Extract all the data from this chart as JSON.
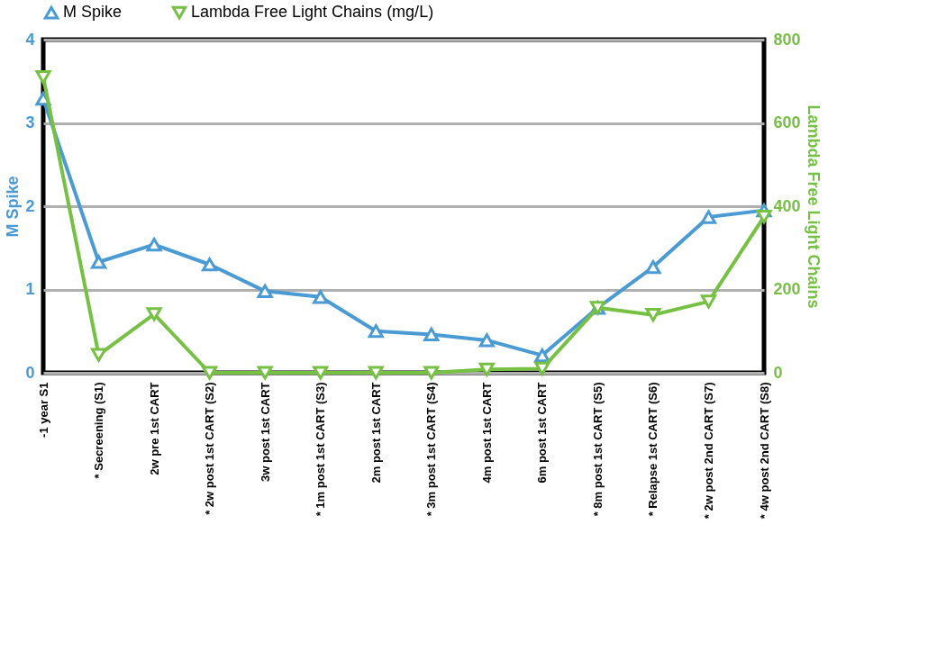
{
  "chart_data": {
    "type": "line",
    "categories": [
      "-1 year S1",
      "* Secreening (S1)",
      "2w pre 1st CART",
      "* 2w post 1st CART (S2)",
      "3w post 1st CART",
      "* 1m post 1st CART (S3)",
      "2m post 1st CART",
      "* 3m post 1st CART (S4)",
      "4m post 1st CART",
      "6m post 1st CART",
      "* 8m post 1st CART (S5)",
      "* Relapse 1st CART (S6)",
      "* 2w post 2nd CART (S7)",
      "* 4w post 2nd CART (S8)"
    ],
    "series": [
      {
        "name": "M Spike",
        "color": "#4a9ad4",
        "marker": "triangle-up",
        "values": [
          3.29,
          1.33,
          1.54,
          1.3,
          0.98,
          0.91,
          0.5,
          0.46,
          0.39,
          0.21,
          0.78,
          1.27,
          1.87,
          1.95
        ]
      },
      {
        "name": "Lambda Free Light Chains (mg/L)",
        "color": "#76c043",
        "marker": "triangle-down",
        "axis": "y2",
        "values": [
          710,
          43,
          141,
          0,
          0,
          0,
          0,
          0,
          8,
          10,
          156,
          139,
          171,
          375
        ]
      }
    ],
    "ylabel": "M Spike",
    "y2label": "Lambda Free Light Chains",
    "ylim": [
      0,
      4
    ],
    "yticks": [
      0,
      1,
      2,
      3,
      4
    ],
    "y2lim": [
      0,
      800
    ],
    "y2ticks": [
      0,
      200,
      400,
      600,
      800
    ],
    "grid": "y",
    "legend": "top"
  }
}
